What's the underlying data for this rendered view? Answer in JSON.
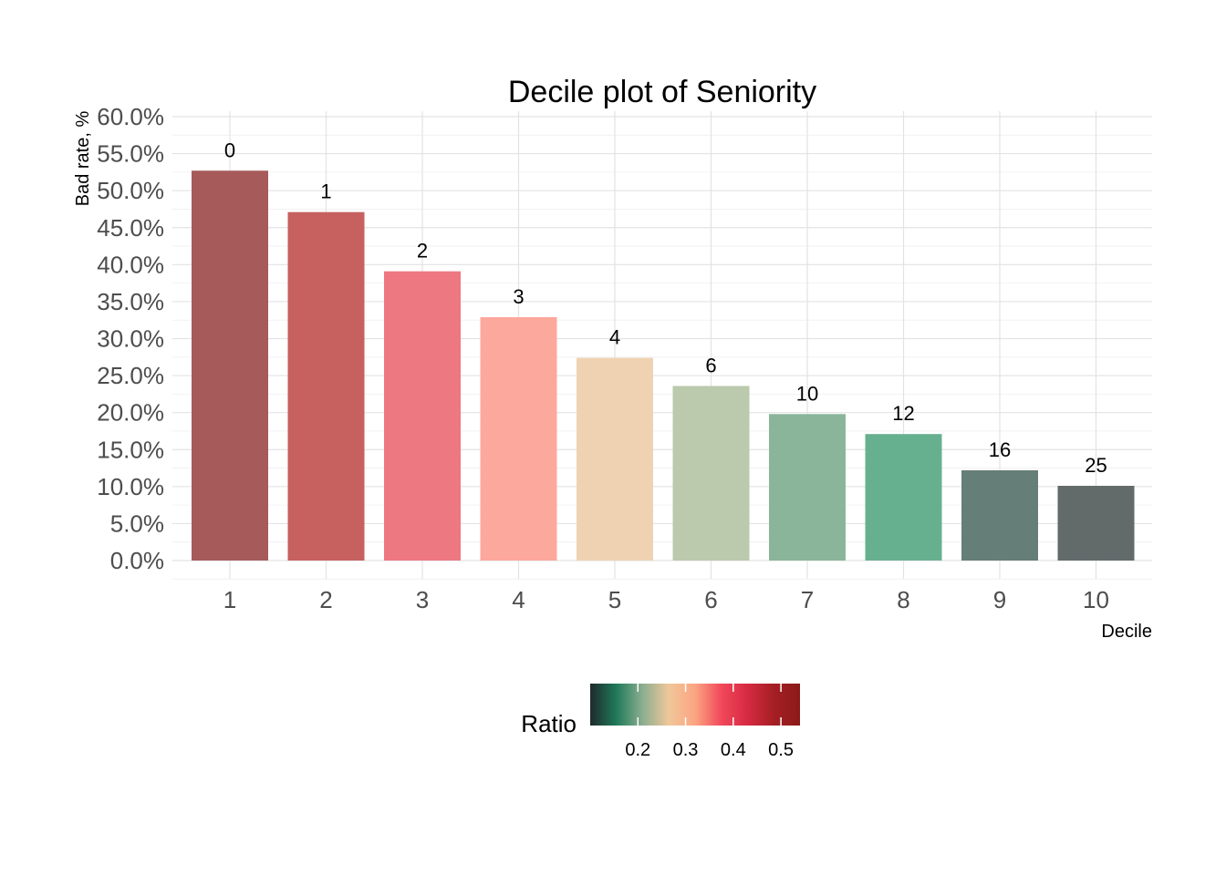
{
  "chart_data": {
    "type": "bar",
    "title": "Decile plot of Seniority",
    "xlabel": "Decile",
    "ylabel": "Bad rate, %",
    "categories": [
      "1",
      "2",
      "3",
      "4",
      "5",
      "6",
      "7",
      "8",
      "9",
      "10"
    ],
    "values": [
      52.7,
      47.1,
      39.1,
      32.9,
      27.4,
      23.6,
      19.8,
      17.1,
      12.2,
      10.1
    ],
    "bar_labels": [
      "0",
      "1",
      "2",
      "3",
      "4",
      "6",
      "10",
      "12",
      "16",
      "25"
    ],
    "bar_colors": [
      "#a65a5a",
      "#c6615f",
      "#ed7882",
      "#fda89c",
      "#efd2b2",
      "#bbc9ad",
      "#8bb59a",
      "#67b08f",
      "#667e78",
      "#626a6a"
    ],
    "ylim": [
      0,
      60
    ],
    "yticks": [
      "0.0%",
      "5.0%",
      "10.0%",
      "15.0%",
      "20.0%",
      "25.0%",
      "30.0%",
      "35.0%",
      "40.0%",
      "45.0%",
      "50.0%",
      "55.0%",
      "60.0%"
    ],
    "grid": true,
    "legend": {
      "title": "Ratio",
      "placement": "bottom",
      "ticks": [
        "0.2",
        "0.3",
        "0.4",
        "0.5"
      ],
      "tick_values": [
        0.2,
        0.3,
        0.4,
        0.5
      ],
      "range": [
        0.1,
        0.54
      ],
      "gradient_colors": [
        "#1f2a2c",
        "#1f7a5a",
        "#8cae90",
        "#f0c79a",
        "#fba582",
        "#f2485a",
        "#d62a42",
        "#a51f24",
        "#8b1a18"
      ]
    }
  }
}
